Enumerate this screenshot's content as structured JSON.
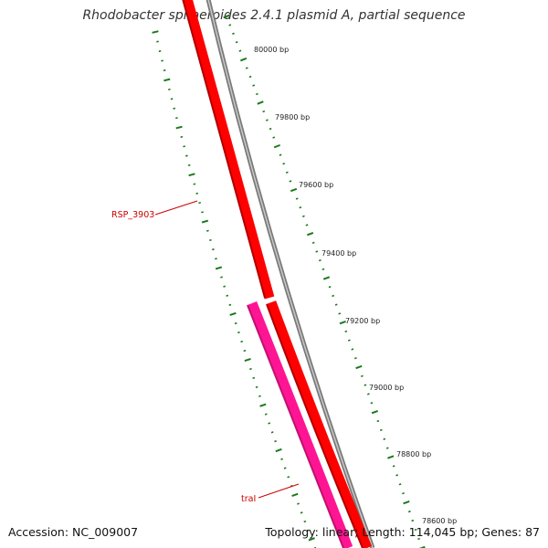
{
  "title": "Rhodobacter sphaeroides 2.4.1 plasmid A, partial sequence",
  "footer": {
    "accession": "Accession: NC_009007",
    "summary": "Topology: linear; Length: 114,045 bp; Genes: 87"
  },
  "scale": {
    "tick_labels": [
      "80000 bp",
      "79800 bp",
      "79600 bp",
      "79400 bp",
      "79200 bp",
      "79000 bp",
      "78800 bp",
      "78600 bp"
    ]
  },
  "genes": [
    {
      "label": "RSP_3903",
      "color": "#ff0000",
      "label_color": "#cc0000"
    },
    {
      "label": "traI",
      "color": "#ff1493",
      "label_color": "#cc0000"
    }
  ],
  "colors": {
    "tick": "#1a7a1a",
    "backbone": "#808080"
  }
}
